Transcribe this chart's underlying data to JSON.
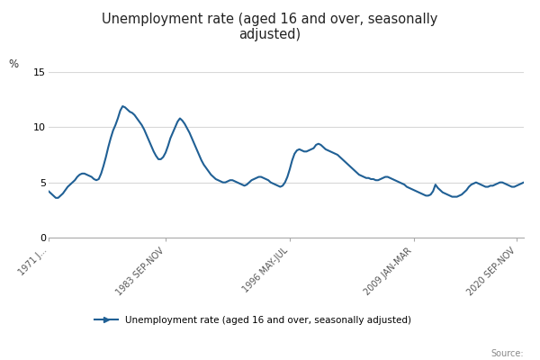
{
  "title": "Unemployment rate (aged 16 and over, seasonally\nadjusted)",
  "ylabel": "%",
  "ylim": [
    0,
    15
  ],
  "yticks": [
    0,
    5,
    10,
    15
  ],
  "source_text": "Source:",
  "legend_label": "Unemployment rate (aged 16 and over, seasonally adjusted)",
  "line_color": "#206095",
  "background_color": "#ffffff",
  "xtick_labels": [
    "1971 J...",
    "1983 SEP-NOV",
    "1996 MAY-JUL",
    "2009 JAN-MAR",
    "2020 SEP-NOV"
  ],
  "xtick_positions": [
    0,
    49,
    101,
    153,
    196
  ],
  "data_y": [
    4.2,
    4.0,
    3.8,
    3.6,
    3.6,
    3.8,
    4.0,
    4.3,
    4.6,
    4.8,
    5.0,
    5.2,
    5.5,
    5.7,
    5.8,
    5.8,
    5.7,
    5.6,
    5.5,
    5.3,
    5.2,
    5.3,
    5.8,
    6.5,
    7.3,
    8.2,
    9.0,
    9.7,
    10.2,
    10.8,
    11.5,
    11.9,
    11.8,
    11.6,
    11.4,
    11.3,
    11.1,
    10.8,
    10.5,
    10.2,
    9.8,
    9.3,
    8.8,
    8.3,
    7.8,
    7.4,
    7.1,
    7.1,
    7.3,
    7.7,
    8.3,
    9.0,
    9.5,
    10.0,
    10.5,
    10.8,
    10.6,
    10.3,
    9.9,
    9.5,
    9.0,
    8.5,
    8.0,
    7.5,
    7.0,
    6.6,
    6.3,
    6.0,
    5.7,
    5.5,
    5.3,
    5.2,
    5.1,
    5.0,
    5.0,
    5.1,
    5.2,
    5.2,
    5.1,
    5.0,
    4.9,
    4.8,
    4.7,
    4.8,
    5.0,
    5.2,
    5.3,
    5.4,
    5.5,
    5.5,
    5.4,
    5.3,
    5.2,
    5.0,
    4.9,
    4.8,
    4.7,
    4.6,
    4.7,
    5.0,
    5.5,
    6.2,
    7.0,
    7.6,
    7.9,
    8.0,
    7.9,
    7.8,
    7.8,
    7.9,
    8.0,
    8.1,
    8.4,
    8.5,
    8.4,
    8.2,
    8.0,
    7.9,
    7.8,
    7.7,
    7.6,
    7.5,
    7.3,
    7.1,
    6.9,
    6.7,
    6.5,
    6.3,
    6.1,
    5.9,
    5.7,
    5.6,
    5.5,
    5.4,
    5.4,
    5.3,
    5.3,
    5.2,
    5.2,
    5.3,
    5.4,
    5.5,
    5.5,
    5.4,
    5.3,
    5.2,
    5.1,
    5.0,
    4.9,
    4.8,
    4.6,
    4.5,
    4.4,
    4.3,
    4.2,
    4.1,
    4.0,
    3.9,
    3.8,
    3.8,
    3.9,
    4.2,
    4.8,
    4.5,
    4.3,
    4.1,
    4.0,
    3.9,
    3.8,
    3.7,
    3.7,
    3.7,
    3.8,
    3.9,
    4.1,
    4.3,
    4.6,
    4.8,
    4.9,
    5.0,
    4.9,
    4.8,
    4.7,
    4.6,
    4.6,
    4.7,
    4.7,
    4.8,
    4.9,
    5.0,
    5.0,
    4.9,
    4.8,
    4.7,
    4.6,
    4.6,
    4.7,
    4.8,
    4.9,
    5.0
  ]
}
